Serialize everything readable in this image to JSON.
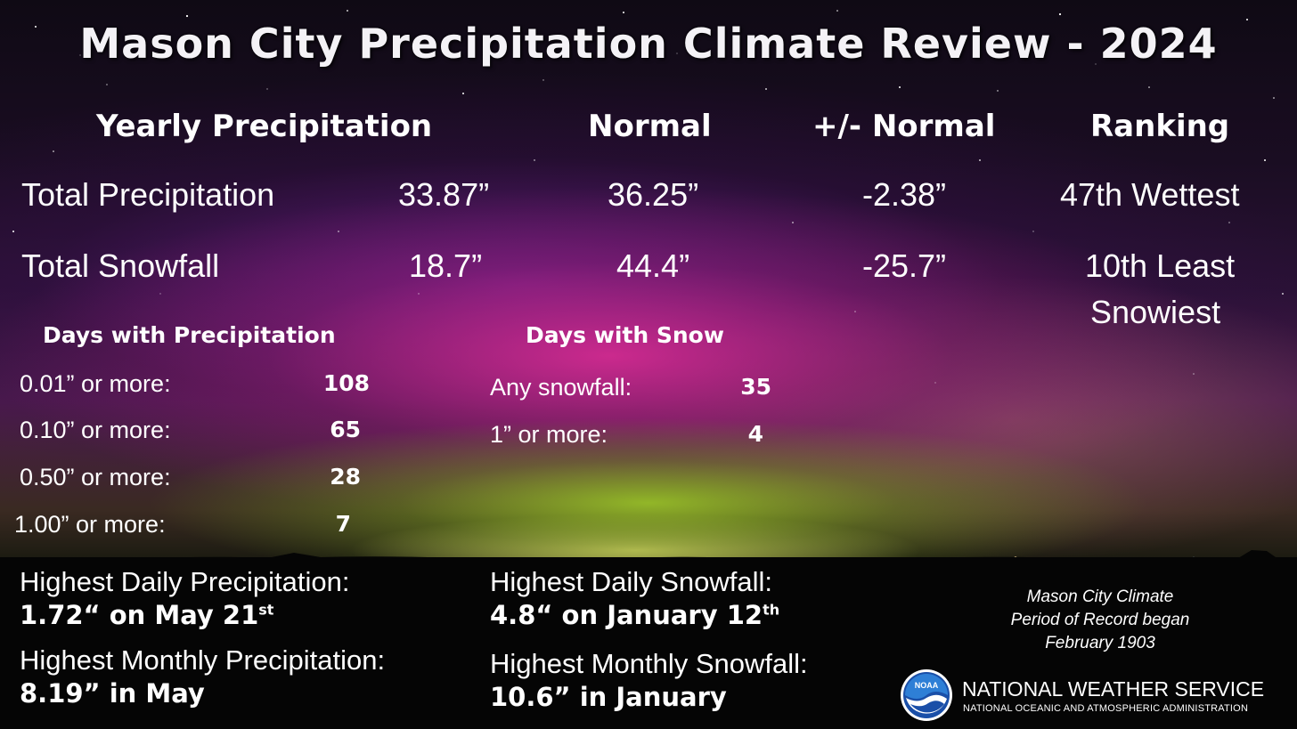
{
  "title": "Mason City Precipitation Climate Review - 2024",
  "headers": {
    "yearly": "Yearly Precipitation",
    "normal": "Normal",
    "departure": "+/- Normal",
    "ranking": "Ranking"
  },
  "rows": [
    {
      "label": "Total Precipitation",
      "value": "33.87”",
      "normal": "36.25”",
      "departure": "-2.38”",
      "ranking": "47th Wettest"
    },
    {
      "label": "Total Snowfall",
      "value": "18.7”",
      "normal": "44.4”",
      "departure": "-25.7”",
      "ranking_line1": "10th Least",
      "ranking_line2": "Snowiest"
    }
  ],
  "days_precip": {
    "title": "Days with Precipitation",
    "items": [
      {
        "label": "0.01” or more:",
        "value": "108"
      },
      {
        "label": "0.10” or more:",
        "value": "65"
      },
      {
        "label": "0.50” or more:",
        "value": "28"
      },
      {
        "label": "1.00” or more:",
        "value": "7"
      }
    ]
  },
  "days_snow": {
    "title": "Days with Snow",
    "items": [
      {
        "label": "Any snowfall:",
        "value": "35"
      },
      {
        "label": "1” or more:",
        "value": "4"
      }
    ]
  },
  "highlights": {
    "daily_precip_label": "Highest Daily Precipitation:",
    "daily_precip_value": "1.72“ on May 21",
    "daily_precip_sup": "st",
    "monthly_precip_label": "Highest Monthly Precipitation:",
    "monthly_precip_value": "8.19” in May",
    "daily_snow_label": "Highest Daily Snowfall:",
    "daily_snow_value": "4.8“ on January 12",
    "daily_snow_sup": "th",
    "monthly_snow_label": "Highest Monthly Snowfall:",
    "monthly_snow_value": "10.6” in January"
  },
  "period_of_record": {
    "line1": "Mason City Climate",
    "line2": "Period of Record began",
    "line3": "February 1903"
  },
  "agency": {
    "logo_text": "NOAA",
    "name": "NATIONAL WEATHER SERVICE",
    "parent": "NATIONAL OCEANIC AND ATMOSPHERIC ADMINISTRATION"
  }
}
